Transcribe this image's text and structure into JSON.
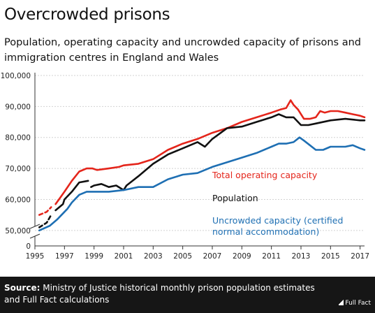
{
  "title": "Overcrowded prisons",
  "subtitle": "Population, operating capacity and uncrowded capacity of prisons and immigration centres in England and Wales",
  "footer": {
    "source_label": "Source:",
    "source_text": "Ministry of Justice historical monthly prison population estimates and Full Fact calculations",
    "logo": "Full Fact"
  },
  "chart_data": {
    "type": "line",
    "title": "Overcrowded prisons",
    "ylim": [
      45000,
      100000
    ],
    "xlim": [
      1995,
      2017.3
    ],
    "yticks": [
      {
        "value": 50000,
        "label": "50,000"
      },
      {
        "value": 60000,
        "label": "60,000"
      },
      {
        "value": 70000,
        "label": "70,000"
      },
      {
        "value": 80000,
        "label": "80,000"
      },
      {
        "value": 90000,
        "label": "90,000"
      },
      {
        "value": 100000,
        "label": "100,000"
      }
    ],
    "xticks": [
      1995,
      1997,
      1999,
      2001,
      2003,
      2005,
      2007,
      2009,
      2011,
      2013,
      2015,
      2017
    ],
    "grid": true,
    "axis_break": true,
    "series": [
      {
        "name": "Total operating capacity",
        "color": "#e4251b",
        "dashed_until": 1996.7,
        "gaps": [
          [
            1996.1,
            1996.4
          ]
        ],
        "x": [
          1995.3,
          1995.8,
          1996.1,
          1996.4,
          1996.7,
          1997.0,
          1997.5,
          1998.0,
          1998.5,
          1998.9,
          1999.2,
          2000.0,
          2000.7,
          2001.0,
          2002.0,
          2003.0,
          2004.0,
          2005.0,
          2006.0,
          2007.0,
          2008.0,
          2009.0,
          2010.0,
          2011.0,
          2011.6,
          2012.0,
          2012.3,
          2012.5,
          2012.8,
          2013.2,
          2013.6,
          2014.0,
          2014.3,
          2014.6,
          2015.0,
          2015.5,
          2016.0,
          2016.5,
          2017.0,
          2017.3
        ],
        "y": [
          55000,
          56000,
          57500,
          58500,
          60500,
          62500,
          66000,
          69000,
          70000,
          70000,
          69500,
          70000,
          70500,
          71000,
          71500,
          73000,
          76000,
          78000,
          79500,
          81500,
          83000,
          85000,
          86500,
          88000,
          89000,
          89500,
          92000,
          90500,
          89000,
          86000,
          86000,
          86500,
          88500,
          88000,
          88500,
          88500,
          88000,
          87500,
          87000,
          86500
        ]
      },
      {
        "name": "Population",
        "color": "#111111",
        "dashed_until": 1996.9,
        "gaps": [
          [
            1996.1,
            1996.4
          ],
          [
            1998.6,
            1998.8
          ]
        ],
        "x": [
          1995.3,
          1995.8,
          1996.1,
          1996.4,
          1996.9,
          1997.0,
          1997.5,
          1998.0,
          1998.6,
          1998.8,
          1999.0,
          1999.5,
          2000.0,
          2000.5,
          2001.0,
          2001.2,
          2002.0,
          2003.0,
          2004.0,
          2005.0,
          2006.0,
          2006.5,
          2007.0,
          2008.0,
          2009.0,
          2010.0,
          2011.0,
          2011.5,
          2012.0,
          2012.5,
          2013.0,
          2013.5,
          2014.0,
          2015.0,
          2016.0,
          2017.0,
          2017.3
        ],
        "y": [
          51000,
          52500,
          55000,
          56500,
          58500,
          60000,
          62500,
          65500,
          66000,
          64000,
          64500,
          65000,
          64000,
          64500,
          63000,
          64500,
          67500,
          71500,
          74500,
          76500,
          78500,
          77000,
          79500,
          83000,
          83500,
          85000,
          86500,
          87500,
          86500,
          86500,
          84000,
          84000,
          84500,
          85500,
          86000,
          85500,
          85500
        ]
      },
      {
        "name": "Uncrowded capacity (certified normal accommodation)",
        "color": "#1e6fb3",
        "dashed_until": 1997.2,
        "gaps": [],
        "x": [
          1995.3,
          1996.0,
          1996.5,
          1997.2,
          1997.5,
          1998.0,
          1998.5,
          1999.0,
          2000.0,
          2001.0,
          2002.0,
          2003.0,
          2004.0,
          2005.0,
          2006.0,
          2007.0,
          2008.0,
          2009.0,
          2010.0,
          2011.0,
          2011.5,
          2012.0,
          2012.5,
          2012.9,
          2013.2,
          2013.6,
          2014.0,
          2014.5,
          2015.0,
          2015.5,
          2016.0,
          2016.5,
          2017.0,
          2017.3
        ],
        "y": [
          50000,
          51500,
          53500,
          57000,
          59000,
          61500,
          62500,
          62500,
          62500,
          63000,
          64000,
          64000,
          66500,
          68000,
          68500,
          70500,
          72000,
          73500,
          75000,
          77000,
          78000,
          78000,
          78500,
          80000,
          79000,
          77500,
          76000,
          76000,
          77000,
          77000,
          77000,
          77500,
          76500,
          76000
        ]
      }
    ]
  }
}
